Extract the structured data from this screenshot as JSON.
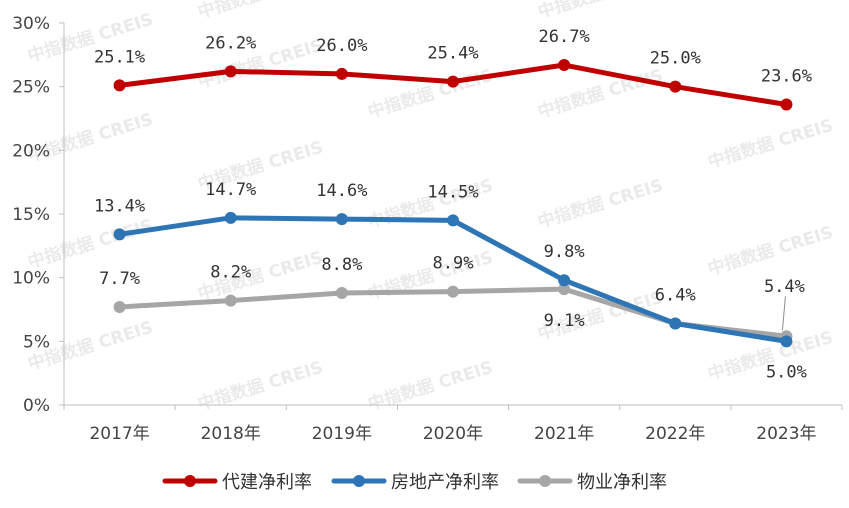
{
  "watermark": "中指数据 CREIS",
  "chart_data": {
    "type": "line",
    "title": "",
    "xlabel": "",
    "ylabel": "",
    "categories": [
      "2017年",
      "2018年",
      "2019年",
      "2020年",
      "2021年",
      "2022年",
      "2023年"
    ],
    "ylim": [
      0,
      30
    ],
    "y_ticks": [
      0,
      5,
      10,
      15,
      20,
      25,
      30
    ],
    "y_tick_labels": [
      "0%",
      "5%",
      "10%",
      "15%",
      "20%",
      "25%",
      "30%"
    ],
    "grid": false,
    "legend_position": "bottom",
    "series": [
      {
        "name": "代建净利率",
        "color": "#C00000",
        "values": [
          25.1,
          26.2,
          26.0,
          25.4,
          26.7,
          25.0,
          23.6
        ],
        "labels": [
          "25.1%",
          "26.2%",
          "26.0%",
          "25.4%",
          "26.7%",
          "25.0%",
          "23.6%"
        ],
        "label_pos": [
          "above",
          "above",
          "above",
          "above",
          "above",
          "above",
          "above"
        ]
      },
      {
        "name": "房地产净利率",
        "color": "#2E75B6",
        "values": [
          13.4,
          14.7,
          14.6,
          14.5,
          9.8,
          6.4,
          5.0
        ],
        "labels": [
          "13.4%",
          "14.7%",
          "14.6%",
          "14.5%",
          "9.8%",
          "6.4%",
          "5.0%"
        ],
        "label_pos": [
          "above",
          "above",
          "above",
          "above",
          "above",
          "above",
          "below"
        ]
      },
      {
        "name": "物业净利率",
        "color": "#A6A6A6",
        "values": [
          7.7,
          8.2,
          8.8,
          8.9,
          9.1,
          6.4,
          5.4
        ],
        "labels": [
          "7.7%",
          "8.2%",
          "8.8%",
          "8.9%",
          "9.1%",
          "",
          "5.4%"
        ],
        "label_pos": [
          "above",
          "above",
          "above",
          "above",
          "below",
          "above",
          "above"
        ]
      }
    ]
  }
}
